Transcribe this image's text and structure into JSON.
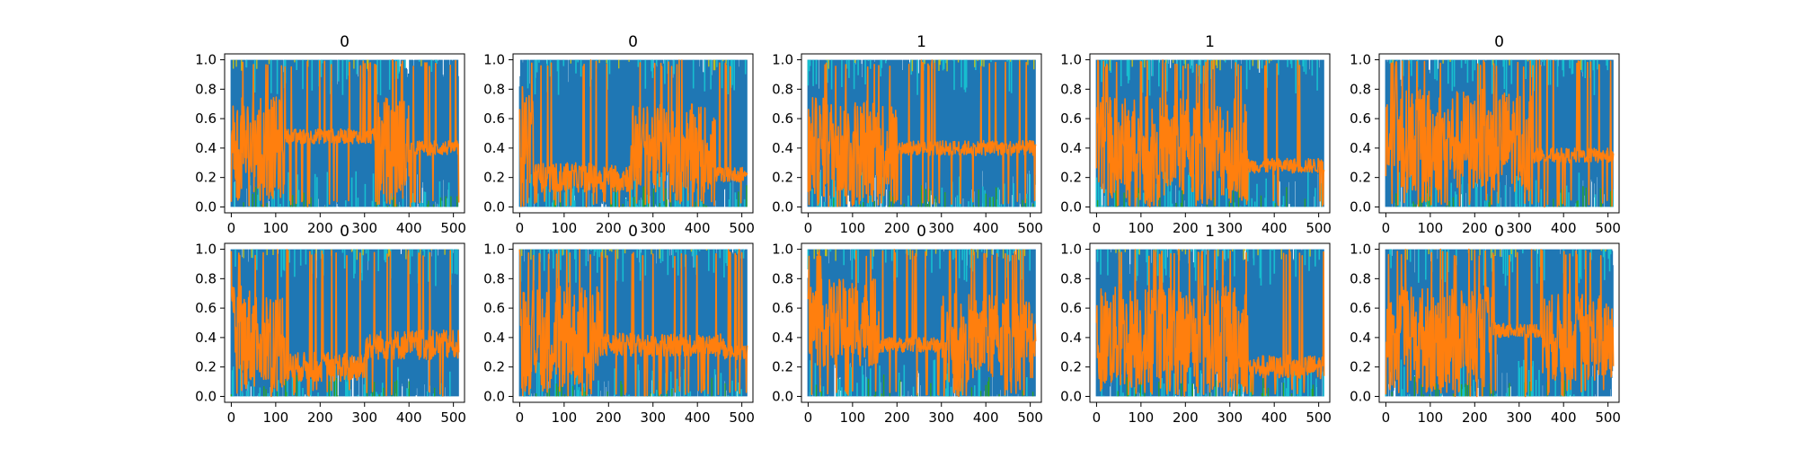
{
  "chart_data": {
    "type": "line",
    "layout": "2x5 grid of subplots",
    "grid": false,
    "legend": "none",
    "colors": {
      "blue": "#1f77b4",
      "orange": "#ff7f0e",
      "cyan": "#17becf",
      "green": "#2ca02c",
      "olive": "#bcbd22",
      "pink": "#e377c2",
      "purple": "#9467bd",
      "grey": "#7f7f7f"
    },
    "panels": [
      {
        "title": "0",
        "xlim": [
          -15,
          525
        ],
        "ylim": [
          -0.04,
          1.04
        ],
        "xticks": [
          0,
          100,
          200,
          300,
          400,
          500
        ],
        "yticks": [
          0.0,
          0.2,
          0.4,
          0.6,
          0.8,
          1.0
        ],
        "segments": [
          [
            0,
            120,
            0.4,
            0.35
          ],
          [
            120,
            330,
            0.48,
            0.05
          ],
          [
            330,
            400,
            0.4,
            0.35
          ],
          [
            400,
            512,
            0.4,
            0.05
          ]
        ]
      },
      {
        "title": "0",
        "xlim": [
          -15,
          525
        ],
        "ylim": [
          -0.04,
          1.04
        ],
        "xticks": [
          0,
          100,
          200,
          300,
          400,
          500
        ],
        "yticks": [
          0.0,
          0.2,
          0.4,
          0.6,
          0.8,
          1.0
        ],
        "segments": [
          [
            0,
            30,
            0.5,
            0.35
          ],
          [
            30,
            250,
            0.2,
            0.1
          ],
          [
            250,
            440,
            0.4,
            0.3
          ],
          [
            440,
            512,
            0.22,
            0.05
          ]
        ]
      },
      {
        "title": "1",
        "xlim": [
          -15,
          525
        ],
        "ylim": [
          -0.04,
          1.04
        ],
        "xticks": [
          0,
          100,
          200,
          300,
          400,
          500
        ],
        "yticks": [
          0.0,
          0.2,
          0.4,
          0.6,
          0.8,
          1.0
        ],
        "segments": [
          [
            0,
            200,
            0.4,
            0.35
          ],
          [
            200,
            512,
            0.4,
            0.05
          ]
        ]
      },
      {
        "title": "1",
        "xlim": [
          -15,
          525
        ],
        "ylim": [
          -0.04,
          1.04
        ],
        "xticks": [
          0,
          100,
          200,
          300,
          400,
          500
        ],
        "yticks": [
          0.0,
          0.2,
          0.4,
          0.6,
          0.8,
          1.0
        ],
        "segments": [
          [
            0,
            340,
            0.4,
            0.35
          ],
          [
            340,
            512,
            0.28,
            0.05
          ]
        ]
      },
      {
        "title": "0",
        "xlim": [
          -15,
          525
        ],
        "ylim": [
          -0.04,
          1.04
        ],
        "xticks": [
          0,
          100,
          200,
          300,
          400,
          500
        ],
        "yticks": [
          0.0,
          0.2,
          0.4,
          0.6,
          0.8,
          1.0
        ],
        "segments": [
          [
            0,
            330,
            0.45,
            0.35
          ],
          [
            330,
            512,
            0.35,
            0.05
          ]
        ]
      },
      {
        "title": "0",
        "xlim": [
          -15,
          525
        ],
        "ylim": [
          -0.04,
          1.04
        ],
        "xticks": [
          0,
          100,
          200,
          300,
          400,
          500
        ],
        "yticks": [
          0.0,
          0.2,
          0.4,
          0.6,
          0.8,
          1.0
        ],
        "segments": [
          [
            0,
            120,
            0.4,
            0.35
          ],
          [
            120,
            300,
            0.2,
            0.1
          ],
          [
            300,
            512,
            0.35,
            0.1
          ]
        ]
      },
      {
        "title": "0",
        "xlim": [
          -15,
          525
        ],
        "ylim": [
          -0.04,
          1.04
        ],
        "xticks": [
          0,
          100,
          200,
          300,
          400,
          500
        ],
        "yticks": [
          0.0,
          0.2,
          0.4,
          0.6,
          0.8,
          1.0
        ],
        "segments": [
          [
            0,
            180,
            0.4,
            0.35
          ],
          [
            180,
            460,
            0.35,
            0.08
          ],
          [
            460,
            512,
            0.3,
            0.05
          ]
        ]
      },
      {
        "title": "0",
        "xlim": [
          -15,
          525
        ],
        "ylim": [
          -0.04,
          1.04
        ],
        "xticks": [
          0,
          100,
          200,
          300,
          400,
          500
        ],
        "yticks": [
          0.0,
          0.2,
          0.4,
          0.6,
          0.8,
          1.0
        ],
        "segments": [
          [
            0,
            160,
            0.5,
            0.3
          ],
          [
            160,
            300,
            0.35,
            0.05
          ],
          [
            300,
            512,
            0.4,
            0.3
          ]
        ]
      },
      {
        "title": "1",
        "xlim": [
          -15,
          525
        ],
        "ylim": [
          -0.04,
          1.04
        ],
        "xticks": [
          0,
          100,
          200,
          300,
          400,
          500
        ],
        "yticks": [
          0.0,
          0.2,
          0.4,
          0.6,
          0.8,
          1.0
        ],
        "segments": [
          [
            0,
            340,
            0.4,
            0.35
          ],
          [
            340,
            512,
            0.2,
            0.08
          ]
        ]
      },
      {
        "title": "0",
        "xlim": [
          -15,
          525
        ],
        "ylim": [
          -0.04,
          1.04
        ],
        "xticks": [
          0,
          100,
          200,
          300,
          400,
          500
        ],
        "yticks": [
          0.0,
          0.2,
          0.4,
          0.6,
          0.8,
          1.0
        ],
        "segments": [
          [
            0,
            240,
            0.4,
            0.35
          ],
          [
            240,
            350,
            0.45,
            0.05
          ],
          [
            350,
            512,
            0.4,
            0.3
          ]
        ]
      }
    ]
  }
}
